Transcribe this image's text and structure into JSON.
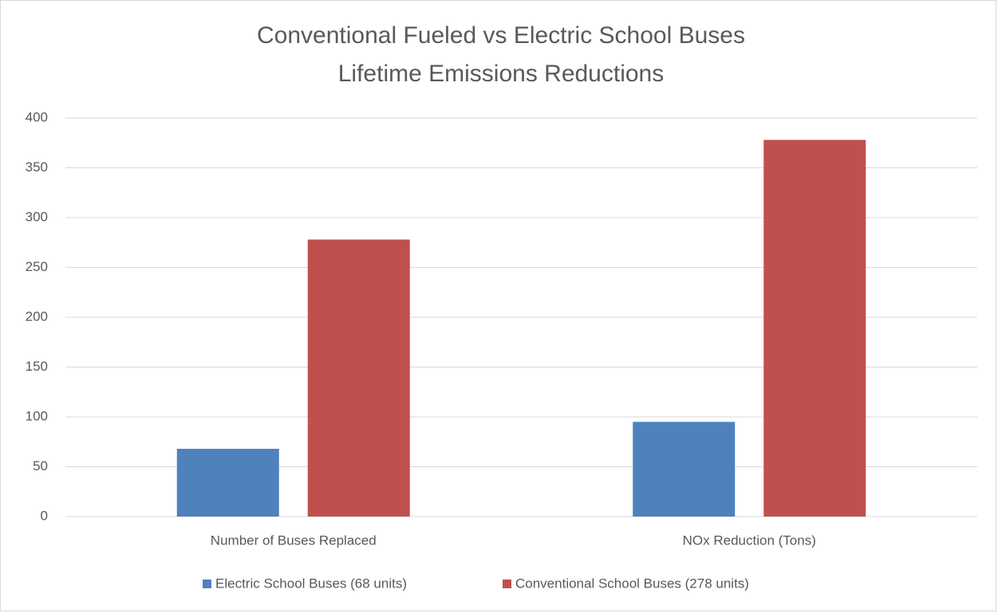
{
  "chart_data": {
    "type": "bar",
    "title": [
      "Conventional Fueled vs Electric School Buses",
      "Lifetime Emissions Reductions"
    ],
    "categories": [
      "Number of Buses Replaced",
      "NOx Reduction (Tons)"
    ],
    "series": [
      {
        "name": "Electric School Buses (68 units)",
        "color": "#4f81bd",
        "values": [
          68,
          95
        ]
      },
      {
        "name": "Conventional School Buses (278 units)",
        "color": "#c0504d",
        "values": [
          278,
          378
        ]
      }
    ],
    "ylim": [
      0,
      400
    ],
    "yticks": [
      0,
      50,
      100,
      150,
      200,
      250,
      300,
      350,
      400
    ],
    "grid": true,
    "legend": "bottom"
  }
}
